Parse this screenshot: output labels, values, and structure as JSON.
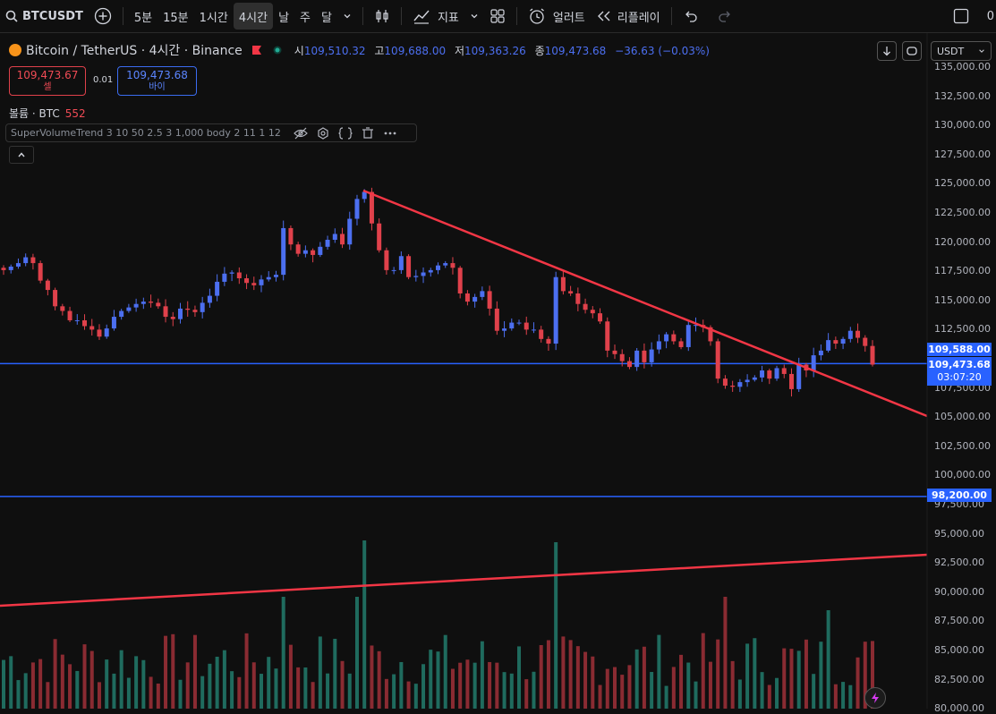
{
  "toolbar": {
    "symbol": "BTCUSDT",
    "intervals": [
      "5분",
      "15분",
      "1시간",
      "4시간",
      "날",
      "주",
      "달"
    ],
    "active_interval": "4시간",
    "indicators_label": "지표",
    "alert_label": "얼러트",
    "replay_label": "리플레이",
    "right_text": "0"
  },
  "header": {
    "title": "Bitcoin / TetherUS · 4시간 · Binance",
    "open_label": "시",
    "open": "109,510.32",
    "high_label": "고",
    "high": "109,688.00",
    "low_label": "저",
    "low": "109,363.26",
    "close_label": "종",
    "close": "109,473.68",
    "change": "−36.63 (−0.03%)"
  },
  "trade": {
    "sell_price": "109,473.67",
    "sell_label": "셀",
    "spread": "0.01",
    "buy_price": "109,473.68",
    "buy_label": "바이"
  },
  "volume_label": "볼륨 · BTC",
  "volume_value": "552",
  "indicator_text": "SuperVolumeTrend 3 10 50 2.5 3 1,000 body 2 11 1 12",
  "currency": "USDT",
  "price_axis": {
    "ticks": [
      "135,000.00",
      "132,500.00",
      "130,000.00",
      "127,500.00",
      "125,000.00",
      "122,500.00",
      "120,000.00",
      "117,500.00",
      "115,000.00",
      "112,500.00",
      "107,500.00",
      "105,000.00",
      "102,500.00",
      "100,000.00",
      "97,500.00",
      "95,000.00",
      "92,500.00",
      "90,000.00",
      "87,500.00",
      "85,000.00",
      "82,500.00",
      "80,000.00"
    ],
    "tag_level": "109,588.00",
    "tag_last": "109,473.68",
    "tag_countdown": "03:07:20",
    "tag_support": "98,200.00"
  },
  "colors": {
    "up": "#089981",
    "down": "#f23645",
    "line_blue": "#2962ff",
    "trend_red": "#f23645"
  },
  "chart_data": {
    "type": "candlestick",
    "series_close": [
      117600,
      117900,
      118200,
      118700,
      118200,
      116700,
      115900,
      114500,
      114100,
      113300,
      113300,
      112800,
      112500,
      111900,
      112600,
      113600,
      114100,
      114400,
      114700,
      114900,
      114800,
      114500,
      113600,
      113400,
      114300,
      114200,
      114000,
      114800,
      115400,
      116600,
      117300,
      117400,
      116900,
      116500,
      116300,
      116800,
      117000,
      117200,
      121200,
      119800,
      119000,
      119300,
      118900,
      119600,
      120200,
      120700,
      119800,
      122000,
      123700,
      124300,
      121600,
      119300,
      117600,
      117600,
      118800,
      117000,
      117100,
      117400,
      117600,
      118000,
      118200,
      117800,
      115600,
      114900,
      115300,
      115800,
      114300,
      112400,
      112600,
      113100,
      113100,
      112500,
      112500,
      111700,
      111300,
      117000,
      115800,
      115600,
      114700,
      114200,
      113900,
      113200,
      110700,
      110400,
      109800,
      109300,
      110700,
      109700,
      110800,
      111500,
      112100,
      111500,
      111000,
      112900,
      112900,
      112700,
      111500,
      108300,
      107700,
      107600,
      108000,
      108200,
      108400,
      109000,
      108300,
      109200,
      108700,
      107400,
      109500,
      109000,
      110300,
      110700,
      111600,
      111300,
      111700,
      112400,
      111800,
      111100,
      109500
    ],
    "price_range": [
      80000,
      136000
    ],
    "support_line": 98200,
    "level_line": 109588
  }
}
